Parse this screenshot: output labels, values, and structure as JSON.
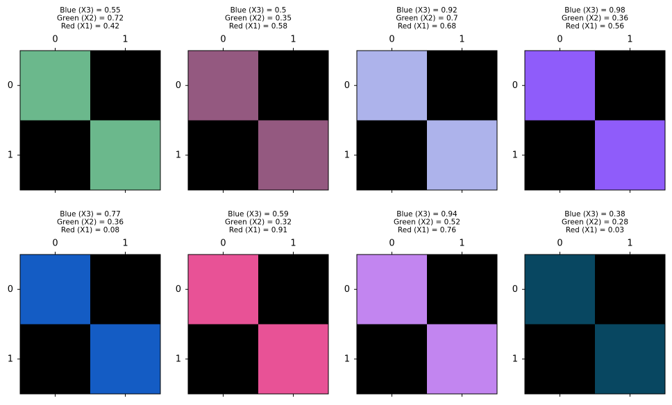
{
  "chart_data": [
    {
      "type": "image",
      "title": [
        "Blue (X3) = 0.55",
        "Green (X2) = 0.72",
        "Red (X1) = 0.42"
      ],
      "color": "#6bb88c",
      "values": [
        [
          1,
          0
        ],
        [
          0,
          1
        ]
      ],
      "xlim": [
        -0.5,
        1.5
      ],
      "ylim": [
        1.5,
        -0.5
      ],
      "xticks": [
        0,
        1
      ],
      "yticks": [
        0,
        1
      ]
    },
    {
      "type": "image",
      "title": [
        "Blue (X3) = 0.5",
        "Green (X2) = 0.35",
        "Red (X1) = 0.58"
      ],
      "color": "#945980",
      "values": [
        [
          1,
          0
        ],
        [
          0,
          1
        ]
      ],
      "xlim": [
        -0.5,
        1.5
      ],
      "ylim": [
        1.5,
        -0.5
      ],
      "xticks": [
        0,
        1
      ],
      "yticks": [
        0,
        1
      ]
    },
    {
      "type": "image",
      "title": [
        "Blue (X3) = 0.92",
        "Green (X2) = 0.7",
        "Red (X1) = 0.68"
      ],
      "color": "#adb3eb",
      "values": [
        [
          1,
          0
        ],
        [
          0,
          1
        ]
      ],
      "xlim": [
        -0.5,
        1.5
      ],
      "ylim": [
        1.5,
        -0.5
      ],
      "xticks": [
        0,
        1
      ],
      "yticks": [
        0,
        1
      ]
    },
    {
      "type": "image",
      "title": [
        "Blue (X3) = 0.98",
        "Green (X2) = 0.36",
        "Red (X1) = 0.56"
      ],
      "color": "#8f5cfa",
      "values": [
        [
          1,
          0
        ],
        [
          0,
          1
        ]
      ],
      "xlim": [
        -0.5,
        1.5
      ],
      "ylim": [
        1.5,
        -0.5
      ],
      "xticks": [
        0,
        1
      ],
      "yticks": [
        0,
        1
      ]
    },
    {
      "type": "image",
      "title": [
        "Blue (X3) = 0.77",
        "Green (X2) = 0.36",
        "Red (X1) = 0.08"
      ],
      "color": "#145cc4",
      "values": [
        [
          1,
          0
        ],
        [
          0,
          1
        ]
      ],
      "xlim": [
        -0.5,
        1.5
      ],
      "ylim": [
        1.5,
        -0.5
      ],
      "xticks": [
        0,
        1
      ],
      "yticks": [
        0,
        1
      ]
    },
    {
      "type": "image",
      "title": [
        "Blue (X3) = 0.59",
        "Green (X2) = 0.32",
        "Red (X1) = 0.91"
      ],
      "color": "#e85296",
      "values": [
        [
          1,
          0
        ],
        [
          0,
          1
        ]
      ],
      "xlim": [
        -0.5,
        1.5
      ],
      "ylim": [
        1.5,
        -0.5
      ],
      "xticks": [
        0,
        1
      ],
      "yticks": [
        0,
        1
      ]
    },
    {
      "type": "image",
      "title": [
        "Blue (X3) = 0.94",
        "Green (X2) = 0.52",
        "Red (X1) = 0.76"
      ],
      "color": "#c285f0",
      "values": [
        [
          1,
          0
        ],
        [
          0,
          1
        ]
      ],
      "xlim": [
        -0.5,
        1.5
      ],
      "ylim": [
        1.5,
        -0.5
      ],
      "xticks": [
        0,
        1
      ],
      "yticks": [
        0,
        1
      ]
    },
    {
      "type": "image",
      "title": [
        "Blue (X3) = 0.38",
        "Green (X2) = 0.28",
        "Red (X1) = 0.03"
      ],
      "color": "#084761",
      "values": [
        [
          1,
          0
        ],
        [
          0,
          1
        ]
      ],
      "xlim": [
        -0.5,
        1.5
      ],
      "ylim": [
        1.5,
        -0.5
      ],
      "xticks": [
        0,
        1
      ],
      "yticks": [
        0,
        1
      ]
    }
  ]
}
